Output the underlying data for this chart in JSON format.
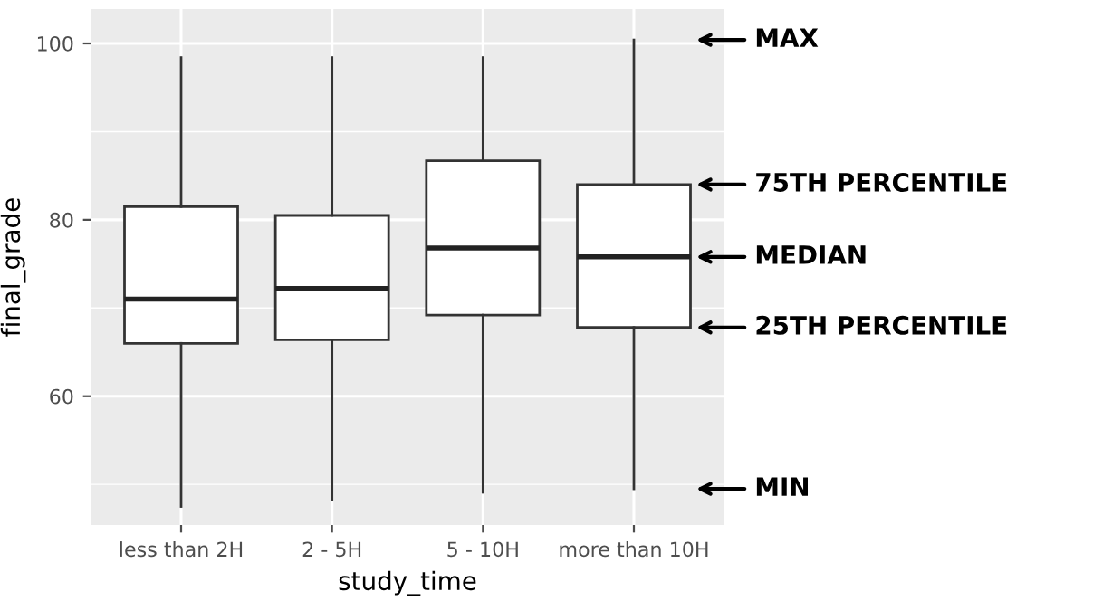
{
  "chart_data": {
    "type": "box",
    "xlabel": "study_time",
    "ylabel": "final_grade",
    "categories": [
      "less than 2H",
      "2 - 5H",
      "5 - 10H",
      "more than 10H"
    ],
    "boxes": [
      {
        "low": 47.5,
        "q1": 66,
        "median": 71,
        "q3": 81.5,
        "high": 98.4
      },
      {
        "low": 48.3,
        "q1": 66.4,
        "median": 72.2,
        "q3": 80.5,
        "high": 98.4
      },
      {
        "low": 49.1,
        "q1": 69.2,
        "median": 76.8,
        "q3": 86.7,
        "high": 98.4
      },
      {
        "low": 49.5,
        "q1": 67.8,
        "median": 75.8,
        "q3": 84,
        "high": 100.4
      }
    ],
    "ylim": [
      45.4,
      103.9
    ],
    "yticks": [
      60,
      80,
      100
    ],
    "grid": true,
    "annotations": [
      "MAX",
      "75TH PERCENTILE",
      "MEDIAN",
      "25TH PERCENTILE",
      "MIN"
    ]
  }
}
